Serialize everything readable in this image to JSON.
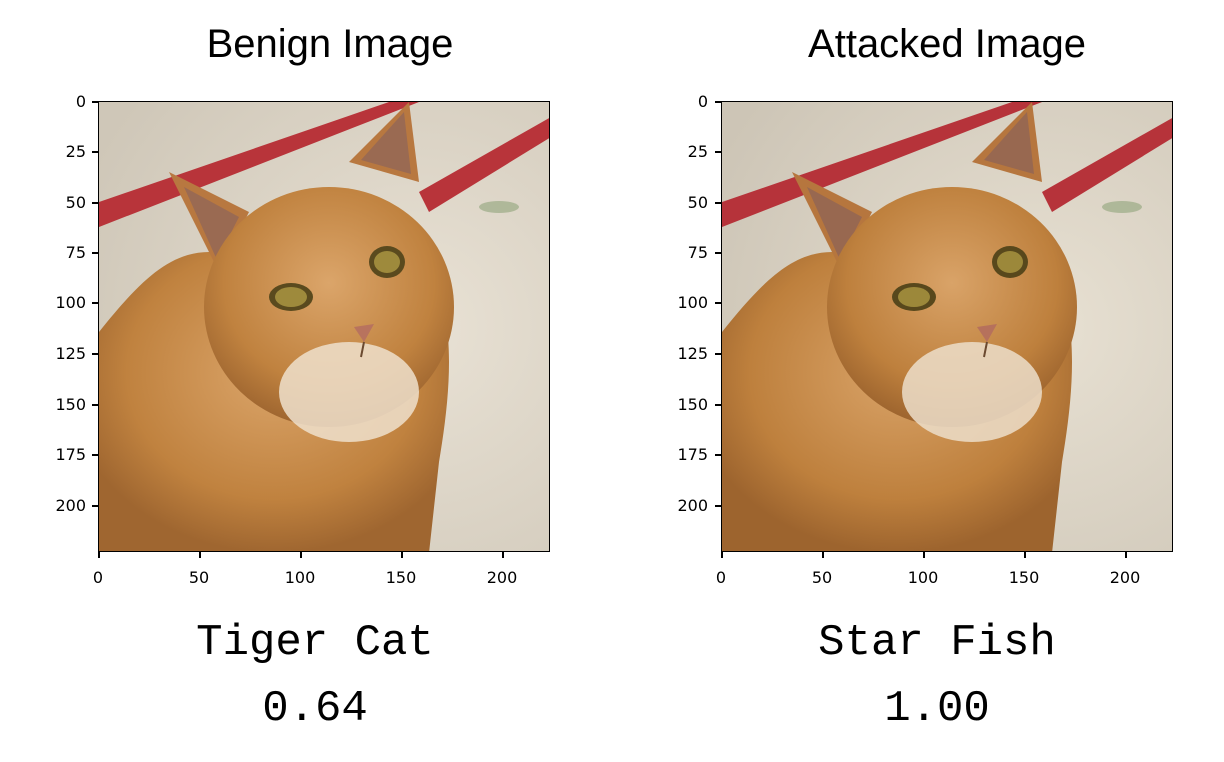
{
  "panels": [
    {
      "title": "Benign Image",
      "label": "Tiger Cat",
      "score": "0.64",
      "image_description_name": "orange-tabby-cat"
    },
    {
      "title": "Attacked Image",
      "label": "Star Fish",
      "score": "1.00",
      "image_description_name": "orange-tabby-cat-adversarial"
    }
  ],
  "axis": {
    "y_ticks": [
      "0",
      "25",
      "50",
      "75",
      "100",
      "125",
      "150",
      "175",
      "200"
    ],
    "x_ticks": [
      "0",
      "50",
      "100",
      "150",
      "200"
    ]
  },
  "colors": {
    "background": "#ffffff",
    "fur": "#c98a4b",
    "stripe": "#b8343a"
  }
}
